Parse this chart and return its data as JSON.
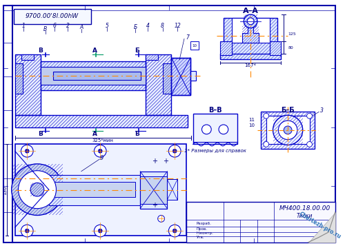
{
  "bg_color": "#ffffff",
  "border_color": "#0000cc",
  "line_color": "#0000cc",
  "center_color": "#ff8800",
  "dim_color": "#000080",
  "title_text": "9700.00'8l.00hW",
  "note_text": "1* Размеры для справок",
  "title_block_text": "МЧ400.18.00.00",
  "watermark": "Chertezh-pro.ru",
  "dim_325": "325*мин",
  "dim_167": "167*",
  "figsize": [
    5.0,
    3.6
  ],
  "dpi": 100
}
